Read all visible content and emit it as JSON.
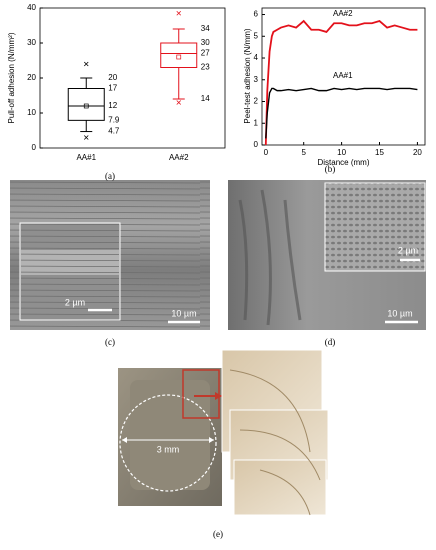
{
  "chart_data": [
    {
      "type": "box",
      "ylabel": "Pull-off adhesion (N/mm²)",
      "categories": [
        "AA#1",
        "AA#2"
      ],
      "boxes": [
        {
          "color": "#000000",
          "min": 4.7,
          "q1": 7.9,
          "median": 12,
          "q3": 17,
          "max": 20,
          "mean": 12,
          "outliers": [
            24,
            3
          ]
        },
        {
          "color": "#e3111b",
          "min": 14,
          "q1": 23,
          "median": 27,
          "q3": 30,
          "max": 34,
          "mean": 26,
          "outliers": [
            38.5,
            13
          ]
        }
      ],
      "ylim": [
        0,
        40
      ],
      "yticks": [
        0,
        10,
        20,
        30,
        40
      ]
    },
    {
      "type": "line",
      "xlabel": "Distance (mm)",
      "ylabel": "Peel-test adhesion (N/mm)",
      "x": [
        0,
        0.2,
        0.5,
        0.8,
        1,
        1.5,
        2,
        3,
        4,
        5,
        6,
        7,
        8,
        9,
        10,
        11,
        12,
        13,
        14,
        15,
        16,
        17,
        18,
        19,
        20
      ],
      "series": [
        {
          "name": "AA#2",
          "color": "#e3111b",
          "values": [
            0,
            2.5,
            4.3,
            5.0,
            5.2,
            5.3,
            5.4,
            5.5,
            5.4,
            5.7,
            5.3,
            5.3,
            5.2,
            5.6,
            5.6,
            5.5,
            5.5,
            5.6,
            5.6,
            5.7,
            5.4,
            5.5,
            5.4,
            5.3,
            5.3
          ]
        },
        {
          "name": "AA#1",
          "color": "#000000",
          "values": [
            0.3,
            1.5,
            2.4,
            2.6,
            2.6,
            2.5,
            2.5,
            2.55,
            2.5,
            2.55,
            2.6,
            2.5,
            2.5,
            2.6,
            2.55,
            2.6,
            2.55,
            2.6,
            2.6,
            2.6,
            2.55,
            2.6,
            2.6,
            2.6,
            2.55
          ]
        }
      ],
      "xlim": [
        -0.5,
        21
      ],
      "xticks": [
        0,
        5,
        10,
        15,
        20
      ],
      "ylim": [
        0,
        6.3
      ],
      "yticks": [
        0,
        1,
        2,
        3,
        4,
        5,
        6
      ]
    }
  ],
  "figure": {
    "panel_labels": [
      "(a)",
      "(b)",
      "(c)",
      "(d)",
      "(e)"
    ],
    "scale_bars": {
      "c_inset": "2 µm",
      "c_main": "10 µm",
      "d_inset": "2 µm",
      "d_main": "10 µm",
      "e_diameter": "3 mm"
    }
  }
}
